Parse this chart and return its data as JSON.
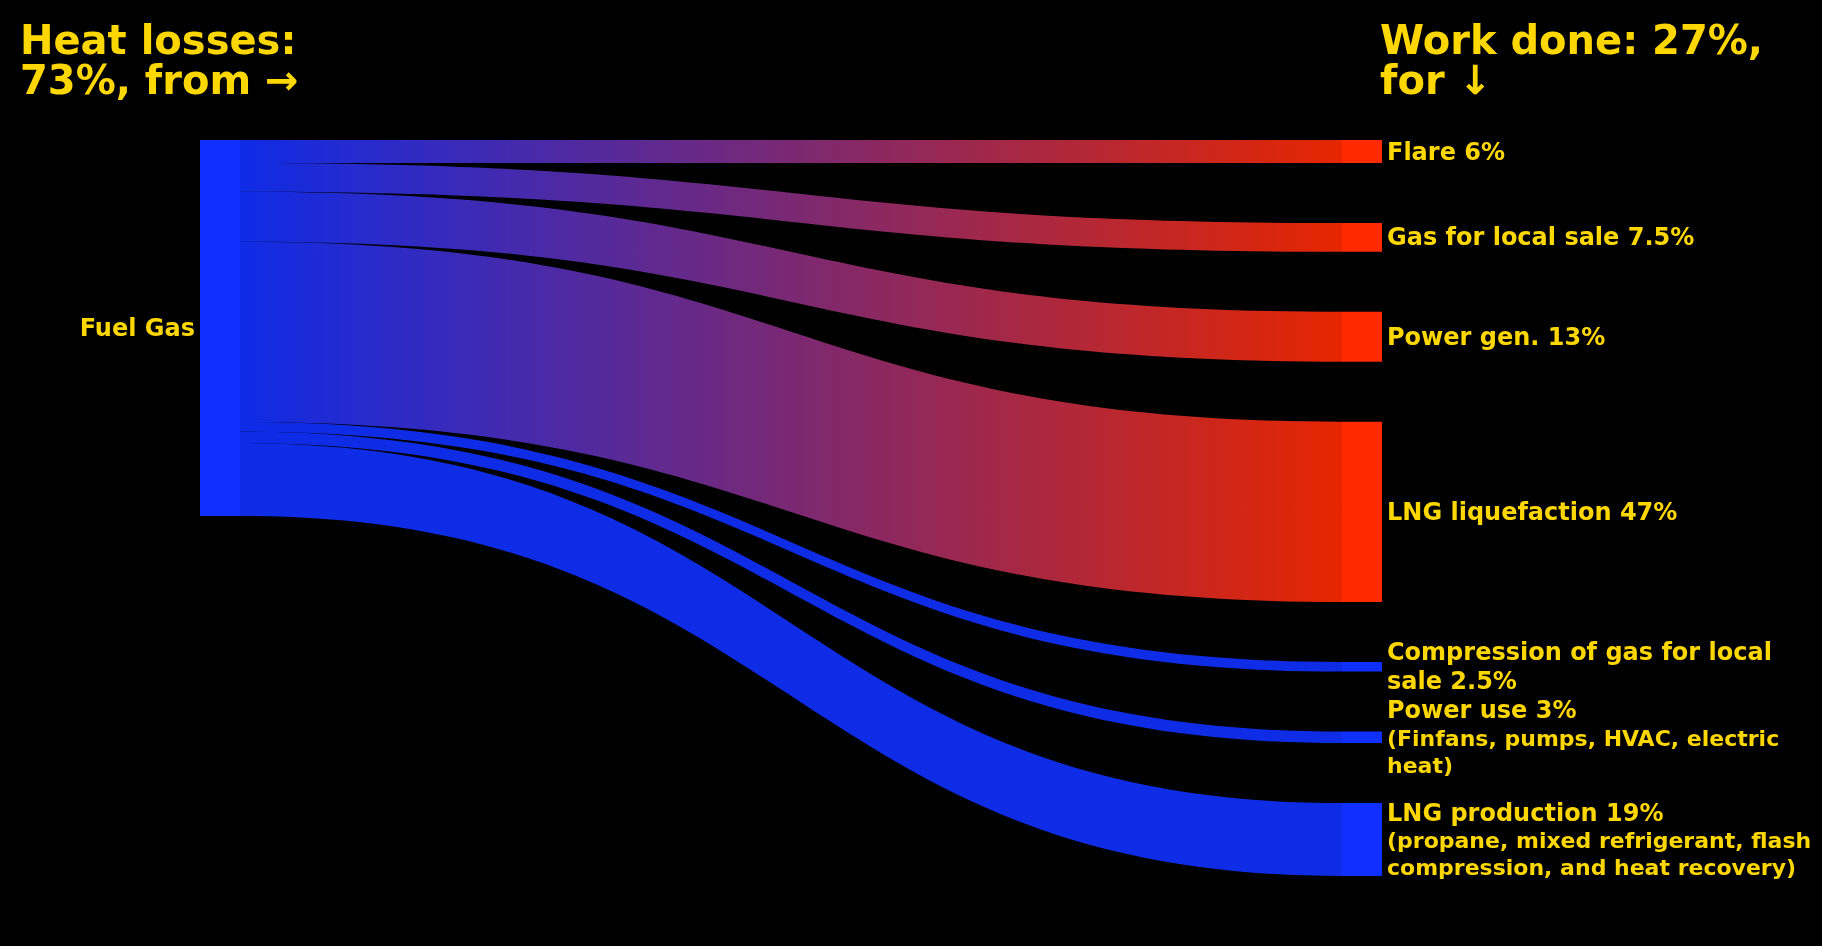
{
  "chart_data": {
    "type": "other",
    "categories": [
      "Fuel Gas",
      "Flare",
      "Gas for local sale",
      "Power gen.",
      "LNG liquefaction",
      "Compression of gas for local sale",
      "Power use",
      "LNG production"
    ],
    "values": [
      null,
      6,
      7.5,
      13,
      47,
      2.5,
      3,
      19
    ],
    "value_labels": [
      null,
      "6%",
      "7.5%",
      "13%",
      "47%",
      "2.5%",
      "3%",
      "19%"
    ],
    "colors": [
      "#1030ff",
      "#ff2a00",
      "#ff2a00",
      "#ff2a00",
      "#ff2a00",
      "#1030ff",
      "#1030ff",
      "#1030ff"
    ],
    "annotations": [
      "Heat losses: 73%, from →",
      "Work done: 27%, for ↓",
      "(Finfans, pumps, HVAC, electric heat)",
      "(propane, mixed refrigerant, flash compression, and heat recovery)"
    ]
  }
}
